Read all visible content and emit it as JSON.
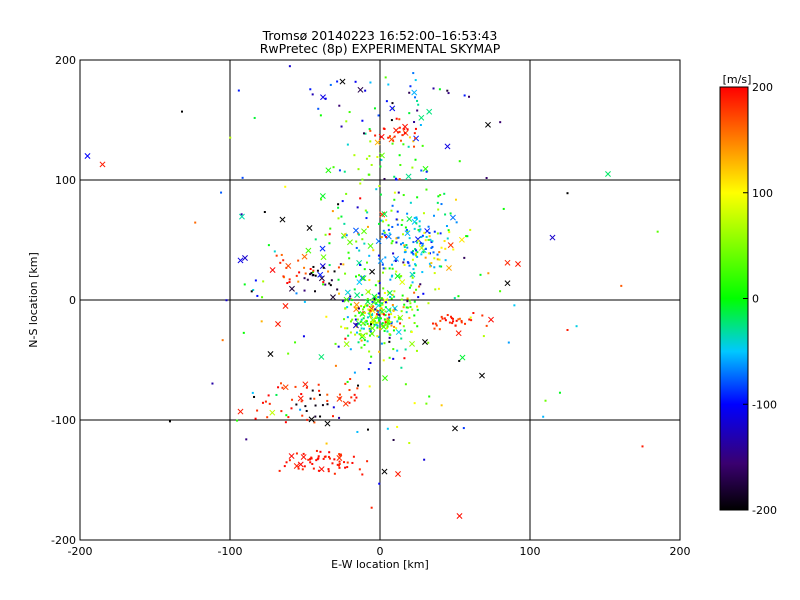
{
  "chart_data": {
    "type": "scatter",
    "title": "Tromsø 20140223 16:52:00–16:53:43",
    "subtitle": "RwPretec (8p) EXPERIMENTAL SKYMAP",
    "xlabel": "E-W location [km]",
    "ylabel": "N-S location [km]",
    "xlim": [
      -200,
      200
    ],
    "ylim": [
      -200,
      200
    ],
    "xticks": [
      "-200",
      "-100",
      "0",
      "100",
      "200"
    ],
    "yticks": [
      "-200",
      "-100",
      "0",
      "100",
      "200"
    ],
    "gridlines": [
      -100,
      0,
      100
    ],
    "grid": true,
    "colorbar": {
      "label": "[m/s]",
      "range": [
        -200,
        200
      ],
      "ticks": [
        "200",
        "100",
        "0",
        "-100",
        "-200"
      ],
      "placement": "right",
      "colormap": "rainbow (black → blue → cyan → green → yellow → red)"
    },
    "markers": {
      "dot": "small dot",
      "cross": "×"
    },
    "clusters": [
      {
        "cx": 5,
        "cy": 65,
        "sx": 22,
        "sy": 55,
        "n": 210,
        "vmean": 5,
        "vsd": 70
      },
      {
        "cx": 22,
        "cy": 48,
        "sx": 14,
        "sy": 14,
        "n": 85,
        "vmean": -60,
        "vsd": 25
      },
      {
        "cx": -2,
        "cy": -15,
        "sx": 12,
        "sy": 12,
        "n": 240,
        "vmean": 30,
        "vsd": 80
      },
      {
        "cx": 12,
        "cy": 140,
        "sx": 6,
        "sy": 6,
        "n": 26,
        "vmean": 185,
        "vsd": 10
      },
      {
        "cx": 10,
        "cy": 165,
        "sx": 40,
        "sy": 15,
        "n": 32,
        "vmean": -110,
        "vsd": 50
      },
      {
        "cx": -40,
        "cy": -135,
        "sx": 13,
        "sy": 6,
        "n": 58,
        "vmean": 190,
        "vsd": 8
      },
      {
        "cx": -60,
        "cy": -85,
        "sx": 15,
        "sy": 12,
        "n": 28,
        "vmean": 185,
        "vsd": 15
      },
      {
        "cx": -42,
        "cy": -88,
        "sx": 5,
        "sy": 6,
        "n": 12,
        "vmean": -195,
        "vsd": 5
      },
      {
        "cx": 48,
        "cy": -18,
        "sx": 10,
        "sy": 6,
        "n": 32,
        "vmean": 185,
        "vsd": 10
      },
      {
        "cx": -58,
        "cy": 27,
        "sx": 10,
        "sy": 8,
        "n": 24,
        "vmean": 180,
        "vsd": 20
      },
      {
        "cx": -42,
        "cy": 18,
        "sx": 7,
        "sy": 7,
        "n": 22,
        "vmean": -185,
        "vsd": 20
      },
      {
        "cx": 35,
        "cy": 40,
        "sx": 10,
        "sy": 10,
        "n": 26,
        "vmean": 130,
        "vsd": 30
      },
      {
        "cx": -25,
        "cy": -80,
        "sx": 6,
        "sy": 6,
        "n": 15,
        "vmean": 185,
        "vsd": 10
      },
      {
        "cx": 0,
        "cy": 0,
        "sx": 70,
        "sy": 75,
        "n": 130,
        "vmean": 0,
        "vsd": 120
      }
    ],
    "points": [
      {
        "x": -195,
        "y": 120,
        "v": -100,
        "m": "cross"
      },
      {
        "x": -185,
        "y": 113,
        "v": 190,
        "m": "cross"
      },
      {
        "x": -132,
        "y": 157,
        "v": -200,
        "m": "dot"
      },
      {
        "x": -90,
        "y": 35,
        "v": -120,
        "m": "cross"
      },
      {
        "x": -93,
        "y": 33,
        "v": -110,
        "m": "cross"
      },
      {
        "x": 115,
        "y": 52,
        "v": -120,
        "m": "cross"
      },
      {
        "x": 152,
        "y": 105,
        "v": -20,
        "m": "cross"
      },
      {
        "x": 53,
        "y": -180,
        "v": 195,
        "m": "cross"
      },
      {
        "x": 12,
        "y": -145,
        "v": 190,
        "m": "cross"
      },
      {
        "x": 3,
        "y": -143,
        "v": -200,
        "m": "cross"
      },
      {
        "x": 50,
        "y": -107,
        "v": -200,
        "m": "cross"
      },
      {
        "x": 175,
        "y": -122,
        "v": 190,
        "m": "dot"
      },
      {
        "x": 125,
        "y": -25,
        "v": 190,
        "m": "dot"
      },
      {
        "x": 125,
        "y": 89,
        "v": -200,
        "m": "dot"
      },
      {
        "x": 68,
        "y": -63,
        "v": -200,
        "m": "cross"
      },
      {
        "x": 92,
        "y": 30,
        "v": 190,
        "m": "cross"
      },
      {
        "x": 85,
        "y": 31,
        "v": 185,
        "m": "cross"
      },
      {
        "x": 85,
        "y": 14,
        "v": -200,
        "m": "cross"
      },
      {
        "x": 55,
        "y": -48,
        "v": -10,
        "m": "cross"
      },
      {
        "x": 30,
        "y": -35,
        "v": -200,
        "m": "cross"
      },
      {
        "x": -93,
        "y": -93,
        "v": 190,
        "m": "cross"
      },
      {
        "x": -73,
        "y": -45,
        "v": -200,
        "m": "cross"
      },
      {
        "x": -68,
        "y": -20,
        "v": 190,
        "m": "cross"
      },
      {
        "x": -63,
        "y": -5,
        "v": 190,
        "m": "cross"
      },
      {
        "x": -25,
        "y": 182,
        "v": -200,
        "m": "cross"
      },
      {
        "x": -38,
        "y": 169,
        "v": -110,
        "m": "cross"
      },
      {
        "x": -65,
        "y": 67,
        "v": -200,
        "m": "cross"
      },
      {
        "x": -47,
        "y": 60,
        "v": -200,
        "m": "cross"
      },
      {
        "x": 72,
        "y": 146,
        "v": -200,
        "m": "cross"
      },
      {
        "x": 45,
        "y": 128,
        "v": -110,
        "m": "cross"
      },
      {
        "x": -35,
        "y": -103,
        "v": -200,
        "m": "cross"
      },
      {
        "x": -8,
        "y": -108,
        "v": -200,
        "m": "dot"
      }
    ]
  }
}
